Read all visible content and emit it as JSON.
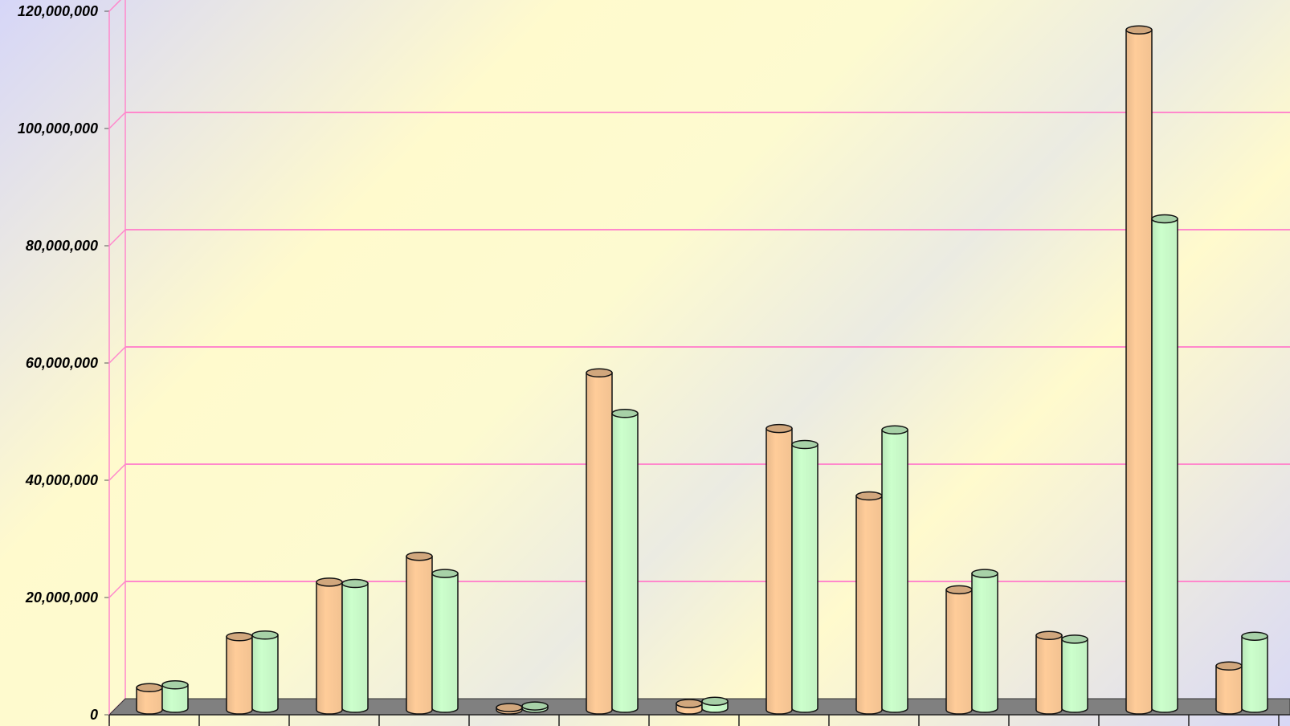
{
  "chart_data": {
    "type": "bar",
    "style": "3d-cylinder",
    "title": "",
    "xlabel": "",
    "ylabel": "",
    "ylim": [
      0,
      120000000
    ],
    "yticks": [
      0,
      20000000,
      40000000,
      60000000,
      80000000,
      100000000,
      120000000
    ],
    "ytick_labels": [
      "0",
      "20,000,000",
      "40,000,000",
      "60,000,000",
      "80,000,000",
      "100,000,000",
      "120,000,000"
    ],
    "grid": true,
    "legend": "none",
    "category_count": 13,
    "series": [
      {
        "color": "#ffcc99",
        "values": [
          3800000,
          12500000,
          21800000,
          26200000,
          400000,
          57500000,
          1100000,
          48000000,
          36500000,
          20500000,
          12700000,
          116000000,
          7500000
        ]
      },
      {
        "color": "#ccffcc",
        "values": [
          4000000,
          12500000,
          21300000,
          23000000,
          400000,
          50300000,
          1200000,
          45000000,
          47500000,
          23000000,
          11800000,
          83500000,
          12300000
        ]
      }
    ],
    "colors": {
      "gridline": "#ff88cc",
      "floor": "#808080",
      "background_light": "#fffacd",
      "background_corner": "#d6d6f8"
    }
  }
}
